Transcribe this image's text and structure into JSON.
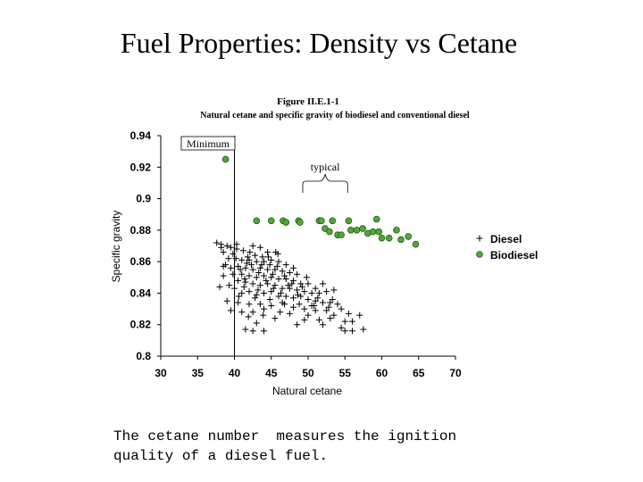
{
  "slide": {
    "title": "Fuel Properties: Density vs Cetane",
    "caption": "The cetane number  measures the ignition\nquality of a diesel fuel."
  },
  "chart_data": {
    "type": "scatter",
    "title": "Figure II.E.1-1",
    "subtitle": "Natural cetane and specific gravity of biodiesel and conventional diesel",
    "xlabel": "Natural cetane",
    "ylabel": "Specific gravity",
    "xlim": [
      30,
      70
    ],
    "ylim": [
      0.8,
      0.94
    ],
    "x_ticks": [
      "30",
      "35",
      "40",
      "45",
      "50",
      "55",
      "60",
      "65",
      "70"
    ],
    "y_ticks": [
      "0.8",
      "0.82",
      "0.84",
      "0.86",
      "0.88",
      "0.9",
      "0.92",
      "0.94"
    ],
    "grid": false,
    "legend_position": "right",
    "annotations": {
      "minimum": {
        "text": "Minimum",
        "x": 40
      },
      "typical": {
        "text": "typical",
        "x_range": [
          50,
          55
        ]
      }
    },
    "series": [
      {
        "name": "Diesel",
        "marker": "plus",
        "color": "#000000",
        "points": [
          [
            37.6,
            0.872
          ],
          [
            38.2,
            0.871
          ],
          [
            39.0,
            0.87
          ],
          [
            39.5,
            0.869
          ],
          [
            38.5,
            0.866
          ],
          [
            39.8,
            0.865
          ],
          [
            40.3,
            0.868
          ],
          [
            41.2,
            0.867
          ],
          [
            42.5,
            0.87
          ],
          [
            43.5,
            0.869
          ],
          [
            44.5,
            0.866
          ],
          [
            45.6,
            0.866
          ],
          [
            40.2,
            0.862
          ],
          [
            41.0,
            0.861
          ],
          [
            42.0,
            0.861
          ],
          [
            43.0,
            0.86
          ],
          [
            44.0,
            0.86
          ],
          [
            45.0,
            0.861
          ],
          [
            46.0,
            0.86
          ],
          [
            47.0,
            0.858
          ],
          [
            48.0,
            0.856
          ],
          [
            38.8,
            0.858
          ],
          [
            39.5,
            0.856
          ],
          [
            40.5,
            0.857
          ],
          [
            41.5,
            0.856
          ],
          [
            42.5,
            0.855
          ],
          [
            43.5,
            0.856
          ],
          [
            44.5,
            0.855
          ],
          [
            45.5,
            0.855
          ],
          [
            46.5,
            0.854
          ],
          [
            47.5,
            0.853
          ],
          [
            48.5,
            0.852
          ],
          [
            41.0,
            0.852
          ],
          [
            42.0,
            0.851
          ],
          [
            43.0,
            0.85
          ],
          [
            44.0,
            0.851
          ],
          [
            45.0,
            0.85
          ],
          [
            46.0,
            0.849
          ],
          [
            47.0,
            0.849
          ],
          [
            48.0,
            0.848
          ],
          [
            49.0,
            0.846
          ],
          [
            50.0,
            0.846
          ],
          [
            40.5,
            0.848
          ],
          [
            41.5,
            0.847
          ],
          [
            42.5,
            0.846
          ],
          [
            43.5,
            0.845
          ],
          [
            44.5,
            0.846
          ],
          [
            45.5,
            0.845
          ],
          [
            46.5,
            0.843
          ],
          [
            47.5,
            0.843
          ],
          [
            48.5,
            0.842
          ],
          [
            49.5,
            0.841
          ],
          [
            50.5,
            0.84
          ],
          [
            51.5,
            0.84
          ],
          [
            52.5,
            0.841
          ],
          [
            53.5,
            0.842
          ],
          [
            38.5,
            0.851
          ],
          [
            40.0,
            0.843
          ],
          [
            41.0,
            0.84
          ],
          [
            42.0,
            0.841
          ],
          [
            43.0,
            0.839
          ],
          [
            44.0,
            0.84
          ],
          [
            45.0,
            0.841
          ],
          [
            46.0,
            0.838
          ],
          [
            47.0,
            0.838
          ],
          [
            48.0,
            0.837
          ],
          [
            49.0,
            0.838
          ],
          [
            50.0,
            0.836
          ],
          [
            51.0,
            0.835
          ],
          [
            52.0,
            0.834
          ],
          [
            53.0,
            0.834
          ],
          [
            54.0,
            0.833
          ],
          [
            39.0,
            0.835
          ],
          [
            40.5,
            0.834
          ],
          [
            42.0,
            0.833
          ],
          [
            43.5,
            0.833
          ],
          [
            45.0,
            0.832
          ],
          [
            46.5,
            0.834
          ],
          [
            48.0,
            0.831
          ],
          [
            49.5,
            0.83
          ],
          [
            51.0,
            0.829
          ],
          [
            52.5,
            0.829
          ],
          [
            39.5,
            0.829
          ],
          [
            41.0,
            0.828
          ],
          [
            42.5,
            0.828
          ],
          [
            44.0,
            0.83
          ],
          [
            47.5,
            0.827
          ],
          [
            50.0,
            0.826
          ],
          [
            53.5,
            0.826
          ],
          [
            55.5,
            0.827
          ],
          [
            57.0,
            0.826
          ],
          [
            49.5,
            0.823
          ],
          [
            51.5,
            0.823
          ],
          [
            53.0,
            0.824
          ],
          [
            55.0,
            0.822
          ],
          [
            56.0,
            0.822
          ],
          [
            45.5,
            0.824
          ],
          [
            43.0,
            0.821
          ],
          [
            48.5,
            0.82
          ],
          [
            52.0,
            0.82
          ],
          [
            54.5,
            0.818
          ],
          [
            41.5,
            0.817
          ],
          [
            42.5,
            0.816
          ],
          [
            44.0,
            0.816
          ],
          [
            55.0,
            0.816
          ],
          [
            56.0,
            0.816
          ],
          [
            57.5,
            0.817
          ],
          [
            38.5,
            0.857
          ],
          [
            39.8,
            0.852
          ],
          [
            40.8,
            0.855
          ],
          [
            41.8,
            0.863
          ],
          [
            42.8,
            0.864
          ],
          [
            43.8,
            0.863
          ],
          [
            44.8,
            0.858
          ],
          [
            45.8,
            0.857
          ],
          [
            46.8,
            0.851
          ],
          [
            47.8,
            0.846
          ],
          [
            42.3,
            0.858
          ],
          [
            43.3,
            0.853
          ],
          [
            44.3,
            0.848
          ],
          [
            45.3,
            0.843
          ],
          [
            46.3,
            0.84
          ],
          [
            41.3,
            0.844
          ],
          [
            42.8,
            0.837
          ],
          [
            44.8,
            0.836
          ],
          [
            46.8,
            0.833
          ],
          [
            48.8,
            0.833
          ],
          [
            50.8,
            0.832
          ],
          [
            52.8,
            0.831
          ],
          [
            54.5,
            0.83
          ],
          [
            40.3,
            0.871
          ],
          [
            39.2,
            0.862
          ],
          [
            41.7,
            0.859
          ],
          [
            43.7,
            0.858
          ],
          [
            45.2,
            0.852
          ],
          [
            47.3,
            0.845
          ],
          [
            49.2,
            0.844
          ],
          [
            51.3,
            0.837
          ],
          [
            53.3,
            0.836
          ],
          [
            38.0,
            0.844
          ],
          [
            49.8,
            0.85
          ],
          [
            51.0,
            0.843
          ],
          [
            52.0,
            0.846
          ],
          [
            50.5,
            0.832
          ],
          [
            40.6,
            0.838
          ],
          [
            41.9,
            0.825
          ],
          [
            43.9,
            0.826
          ],
          [
            46.2,
            0.828
          ],
          [
            44.6,
            0.863
          ],
          [
            45.9,
            0.865
          ],
          [
            42.1,
            0.866
          ],
          [
            41.4,
            0.849
          ],
          [
            43.2,
            0.842
          ],
          [
            48.6,
            0.839
          ],
          [
            39.3,
            0.845
          ],
          [
            38.2,
            0.869
          ]
        ]
      },
      {
        "name": "Biodiesel",
        "marker": "circle",
        "color": "#55a63a",
        "points": [
          [
            38.8,
            0.925
          ],
          [
            43.0,
            0.886
          ],
          [
            45.0,
            0.886
          ],
          [
            46.6,
            0.886
          ],
          [
            47.0,
            0.885
          ],
          [
            48.7,
            0.886
          ],
          [
            48.9,
            0.885
          ],
          [
            51.5,
            0.886
          ],
          [
            51.8,
            0.886
          ],
          [
            52.3,
            0.881
          ],
          [
            52.9,
            0.879
          ],
          [
            53.3,
            0.886
          ],
          [
            54.0,
            0.877
          ],
          [
            54.5,
            0.877
          ],
          [
            55.5,
            0.886
          ],
          [
            55.8,
            0.88
          ],
          [
            56.6,
            0.88
          ],
          [
            57.4,
            0.881
          ],
          [
            58.1,
            0.878
          ],
          [
            58.8,
            0.879
          ],
          [
            59.3,
            0.887
          ],
          [
            59.6,
            0.879
          ],
          [
            60.0,
            0.875
          ],
          [
            61.0,
            0.875
          ],
          [
            62.0,
            0.88
          ],
          [
            62.6,
            0.874
          ],
          [
            63.6,
            0.876
          ],
          [
            64.6,
            0.871
          ]
        ]
      }
    ]
  }
}
